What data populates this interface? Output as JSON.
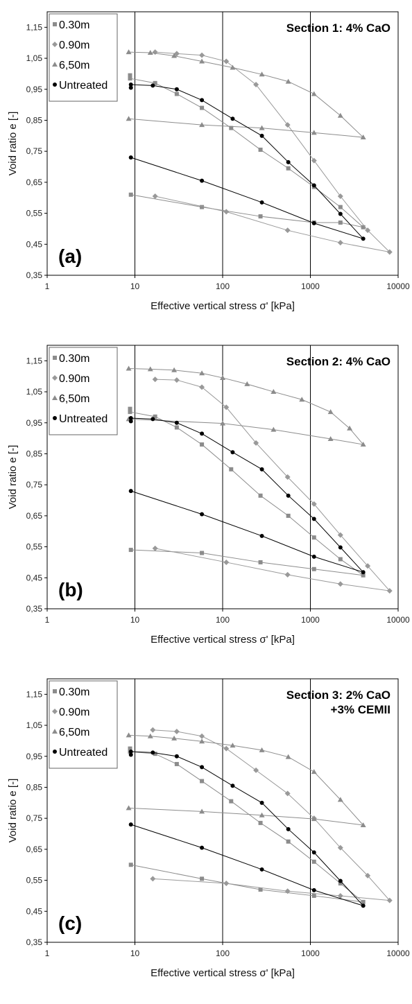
{
  "chart_data": [
    {
      "type": "scatter",
      "title": "Section 1: 4% CaO",
      "panel_label": "(a)",
      "xlabel": "Effective vertical stress σ' [kPa]",
      "ylabel": "Void ratio e [-]",
      "x_scale": "log",
      "xlim": [
        1,
        10000
      ],
      "ylim": [
        0.35,
        1.2
      ],
      "x_ticks": [
        "1",
        "10",
        "100",
        "1000",
        "10000"
      ],
      "y_ticks": [
        "0,35",
        "0,45",
        "0,55",
        "0,65",
        "0,75",
        "0,85",
        "0,95",
        "1,05",
        "1,15"
      ],
      "legend_position": "top-left",
      "series": [
        {
          "name": "0.30m",
          "marker": "square",
          "color": "#8c8c8c",
          "x": [
            8.8,
            8.8,
            17,
            30,
            58,
            125,
            270,
            560,
            1100,
            2200,
            4000,
            2200,
            1100,
            270,
            58,
            9
          ],
          "y": [
            0.995,
            0.985,
            0.97,
            0.935,
            0.89,
            0.825,
            0.755,
            0.695,
            0.635,
            0.57,
            0.505,
            0.52,
            0.52,
            0.54,
            0.57,
            0.61
          ]
        },
        {
          "name": "0.90m",
          "marker": "diamond",
          "color": "#999999",
          "x": [
            17,
            30,
            58,
            110,
            240,
            550,
            1100,
            2200,
            4500,
            8000,
            2200,
            550,
            110,
            17
          ],
          "y": [
            1.07,
            1.065,
            1.06,
            1.04,
            0.965,
            0.835,
            0.72,
            0.605,
            0.495,
            0.425,
            0.455,
            0.495,
            0.555,
            0.605
          ]
        },
        {
          "name": "6,50m",
          "marker": "triangle",
          "color": "#8c8c8c",
          "x": [
            8.5,
            15,
            28,
            58,
            130,
            280,
            560,
            1100,
            2200,
            4000,
            1100,
            280,
            58,
            8.5
          ],
          "y": [
            1.07,
            1.068,
            1.058,
            1.04,
            1.02,
            0.998,
            0.975,
            0.935,
            0.865,
            0.795,
            0.81,
            0.825,
            0.835,
            0.855
          ]
        },
        {
          "name": "Untreated",
          "marker": "circle",
          "color": "#000000",
          "x": [
            9,
            9,
            16,
            30,
            58,
            130,
            280,
            560,
            1100,
            2200,
            4000,
            1100,
            280,
            58,
            9
          ],
          "y": [
            0.955,
            0.965,
            0.962,
            0.95,
            0.915,
            0.855,
            0.8,
            0.715,
            0.64,
            0.548,
            0.468,
            0.518,
            0.585,
            0.655,
            0.73
          ]
        }
      ]
    },
    {
      "type": "scatter",
      "title": "Section 2: 4% CaO",
      "panel_label": "(b)",
      "xlabel": "Effective vertical stress σ' [kPa]",
      "ylabel": "Void ratio e [-]",
      "x_scale": "log",
      "xlim": [
        1,
        10000
      ],
      "ylim": [
        0.35,
        1.2
      ],
      "x_ticks": [
        "1",
        "10",
        "100",
        "1000",
        "10000"
      ],
      "y_ticks": [
        "0,35",
        "0,45",
        "0,55",
        "0,65",
        "0,75",
        "0,85",
        "0,95",
        "1,05",
        "1,15"
      ],
      "legend_position": "top-left",
      "series": [
        {
          "name": "0.30m",
          "marker": "square",
          "color": "#8c8c8c",
          "x": [
            8.8,
            8.8,
            17,
            30,
            58,
            125,
            270,
            560,
            1100,
            2200,
            4000,
            1100,
            270,
            58,
            9
          ],
          "y": [
            0.995,
            0.985,
            0.97,
            0.935,
            0.88,
            0.8,
            0.715,
            0.65,
            0.58,
            0.51,
            0.458,
            0.478,
            0.5,
            0.53,
            0.54
          ]
        },
        {
          "name": "0.90m",
          "marker": "diamond",
          "color": "#999999",
          "x": [
            17,
            30,
            58,
            110,
            240,
            550,
            1100,
            2200,
            4500,
            8000,
            2200,
            550,
            110,
            17
          ],
          "y": [
            1.09,
            1.088,
            1.065,
            1.0,
            0.885,
            0.775,
            0.688,
            0.588,
            0.488,
            0.408,
            0.43,
            0.46,
            0.5,
            0.545
          ]
        },
        {
          "name": "6,50m",
          "marker": "triangle",
          "color": "#8c8c8c",
          "x": [
            8.5,
            15,
            28,
            58,
            100,
            190,
            380,
            800,
            1700,
            2800,
            4000,
            1700,
            380,
            100,
            8.5
          ],
          "y": [
            1.125,
            1.123,
            1.12,
            1.11,
            1.095,
            1.075,
            1.05,
            1.025,
            0.985,
            0.932,
            0.88,
            0.898,
            0.928,
            0.948,
            0.962
          ]
        },
        {
          "name": "Untreated",
          "marker": "circle",
          "color": "#000000",
          "x": [
            9,
            9,
            16,
            30,
            58,
            130,
            280,
            560,
            1100,
            2200,
            4000,
            1100,
            280,
            58,
            9
          ],
          "y": [
            0.955,
            0.965,
            0.962,
            0.95,
            0.915,
            0.855,
            0.8,
            0.715,
            0.64,
            0.548,
            0.468,
            0.518,
            0.585,
            0.655,
            0.73
          ]
        }
      ]
    },
    {
      "type": "scatter",
      "title": "Section 3: 2% CaO",
      "title_line2": "+3% CEMII",
      "panel_label": "(c)",
      "xlabel": "Effective vertical stress σ' [kPa]",
      "ylabel": "Void ratio e [-]",
      "x_scale": "log",
      "xlim": [
        1,
        10000
      ],
      "ylim": [
        0.35,
        1.2
      ],
      "x_ticks": [
        "1",
        "10",
        "100",
        "1000",
        "10000"
      ],
      "y_ticks": [
        "0,35",
        "0,45",
        "0,55",
        "0,65",
        "0,75",
        "0,85",
        "0,95",
        "1,05",
        "1,15"
      ],
      "legend_position": "top-left",
      "series": [
        {
          "name": "0.30m",
          "marker": "square",
          "color": "#8c8c8c",
          "x": [
            8.8,
            8.8,
            17,
            30,
            58,
            125,
            270,
            560,
            1100,
            2200,
            4000,
            1100,
            270,
            58,
            9
          ],
          "y": [
            0.975,
            0.965,
            0.958,
            0.925,
            0.87,
            0.805,
            0.735,
            0.675,
            0.61,
            0.54,
            0.48,
            0.5,
            0.52,
            0.555,
            0.6
          ]
        },
        {
          "name": "0.90m",
          "marker": "diamond",
          "color": "#999999",
          "x": [
            16,
            30,
            58,
            110,
            240,
            550,
            1100,
            2200,
            4500,
            8000,
            2200,
            550,
            110,
            16
          ],
          "y": [
            1.035,
            1.03,
            1.015,
            0.975,
            0.905,
            0.83,
            0.75,
            0.655,
            0.565,
            0.485,
            0.5,
            0.515,
            0.54,
            0.555
          ]
        },
        {
          "name": "6,50m",
          "marker": "triangle",
          "color": "#8c8c8c",
          "x": [
            8.5,
            15,
            28,
            58,
            130,
            280,
            560,
            1100,
            2200,
            4000,
            1100,
            280,
            58,
            8.5
          ],
          "y": [
            1.018,
            1.015,
            1.008,
            0.998,
            0.985,
            0.97,
            0.948,
            0.9,
            0.81,
            0.728,
            0.748,
            0.76,
            0.772,
            0.783
          ]
        },
        {
          "name": "Untreated",
          "marker": "circle",
          "color": "#000000",
          "x": [
            9,
            9,
            16,
            30,
            58,
            130,
            280,
            560,
            1100,
            2200,
            4000,
            1100,
            280,
            58,
            9
          ],
          "y": [
            0.955,
            0.965,
            0.962,
            0.95,
            0.915,
            0.855,
            0.8,
            0.715,
            0.64,
            0.548,
            0.468,
            0.518,
            0.585,
            0.655,
            0.73
          ]
        }
      ]
    }
  ]
}
